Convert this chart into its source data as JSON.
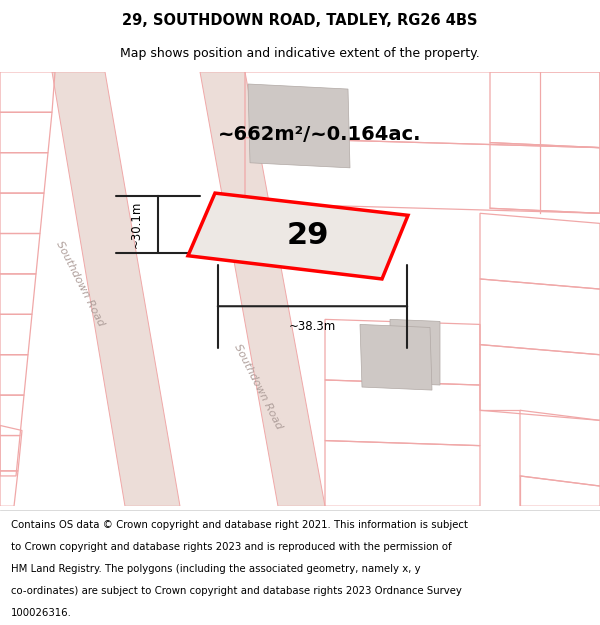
{
  "title_line1": "29, SOUTHDOWN ROAD, TADLEY, RG26 4BS",
  "title_line2": "Map shows position and indicative extent of the property.",
  "area_text": "~662m²/~0.164ac.",
  "property_number": "29",
  "dim_width": "~38.3m",
  "dim_height": "~30.1m",
  "road_label1": "Southdown Road",
  "road_label2": "Southdown Road",
  "footer_lines": [
    "Contains OS data © Crown copyright and database right 2021. This information is subject",
    "to Crown copyright and database rights 2023 and is reproduced with the permission of",
    "HM Land Registry. The polygons (including the associated geometry, namely x, y",
    "co-ordinates) are subject to Crown copyright and database rights 2023 Ordnance Survey",
    "100026316."
  ],
  "bg_color": "#f2ede9",
  "property_fill": "#ede8e4",
  "property_edge": "#ff0000",
  "light_red": "#f0a8a8",
  "gray_building": "#cec8c5",
  "road_color": "#ecddd8",
  "title_fontsize": 10.5,
  "subtitle_fontsize": 9,
  "footer_fontsize": 7.3
}
